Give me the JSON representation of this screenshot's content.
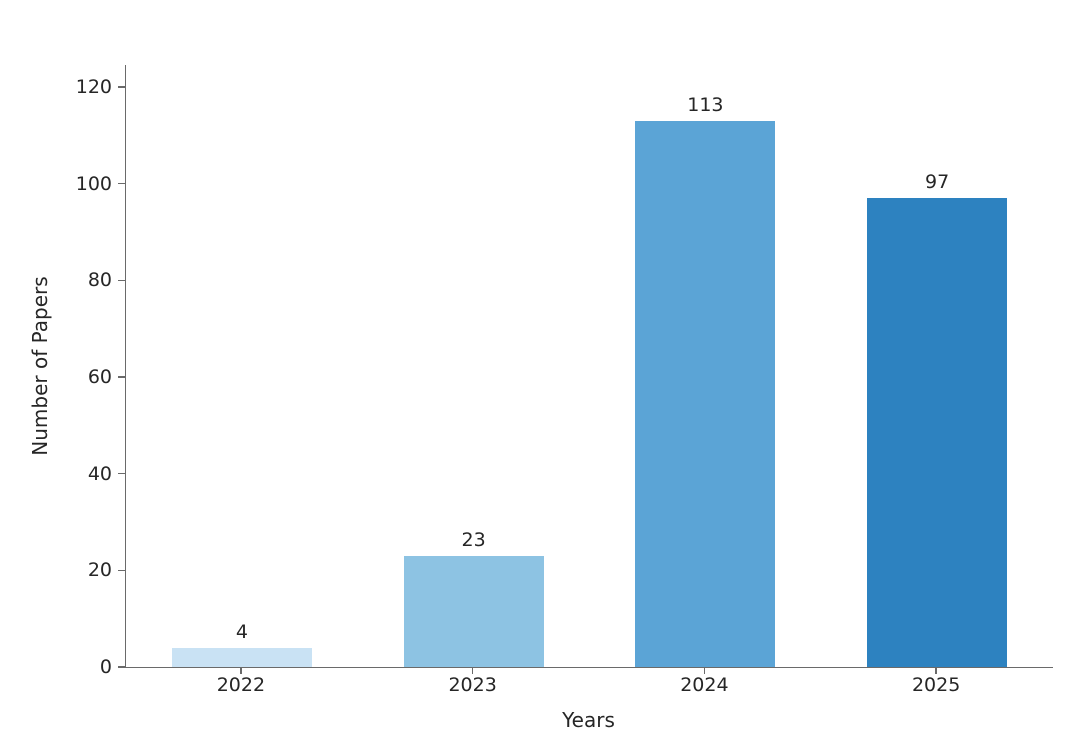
{
  "figure": {
    "background_color": "#ffffff"
  },
  "chart_data": {
    "type": "bar",
    "title": "",
    "categories": [
      "2022",
      "2023",
      "2024",
      "2025"
    ],
    "values": [
      4,
      23,
      113,
      97
    ],
    "bar_value_labels": [
      "4",
      "23",
      "113",
      "97"
    ],
    "xlabel": "Years",
    "ylabel": "Number of Papers",
    "ylim": [
      0,
      120
    ],
    "yticks": [
      0,
      20,
      40,
      60,
      80,
      100,
      120
    ],
    "bar_colors": [
      "#c9e2f4",
      "#8dc3e3",
      "#5ba4d6",
      "#2d82c0"
    ],
    "axis_color": "#6a6a6a",
    "text_color": "#262626",
    "grid": false,
    "legend": "none"
  }
}
